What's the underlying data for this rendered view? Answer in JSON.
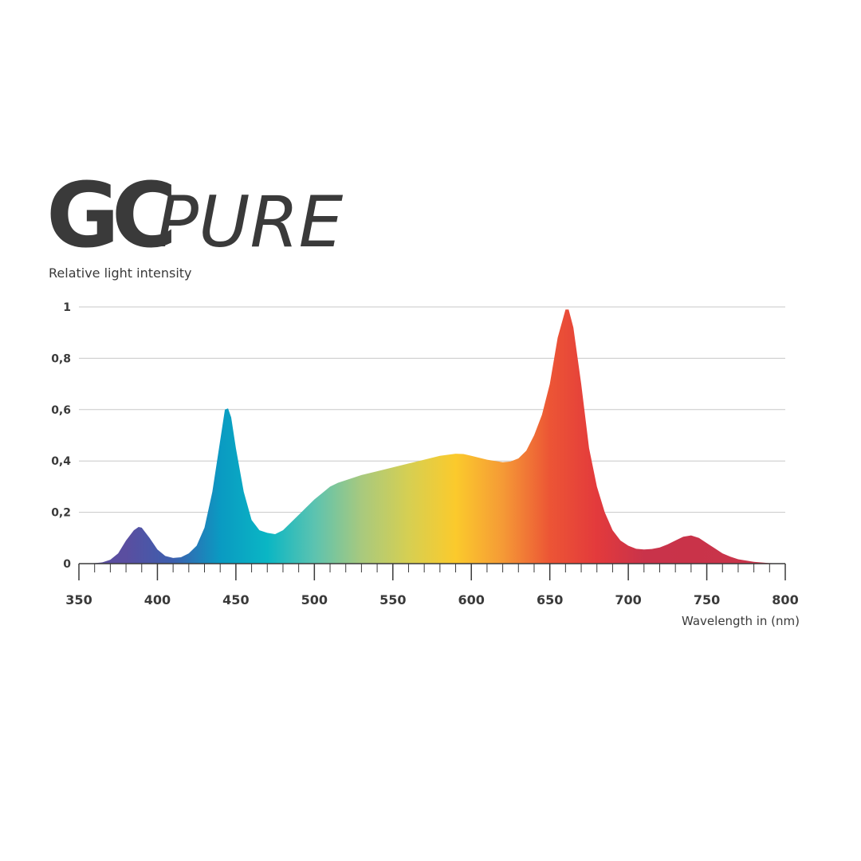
{
  "logo": {
    "mark": "GC",
    "text": "PURE"
  },
  "chart_data": {
    "type": "area",
    "ylabel": "Relative light intensity",
    "xlabel": "Wavelength in (nm)",
    "x": [
      350,
      355,
      360,
      365,
      370,
      375,
      380,
      385,
      388,
      390,
      395,
      400,
      405,
      410,
      415,
      420,
      425,
      430,
      435,
      440,
      443,
      445,
      447,
      450,
      455,
      460,
      465,
      470,
      475,
      480,
      485,
      490,
      495,
      500,
      505,
      510,
      515,
      520,
      525,
      530,
      540,
      550,
      560,
      570,
      580,
      590,
      595,
      600,
      610,
      620,
      625,
      630,
      635,
      640,
      645,
      650,
      655,
      660,
      662,
      665,
      670,
      675,
      680,
      685,
      690,
      695,
      700,
      705,
      710,
      715,
      720,
      725,
      730,
      735,
      740,
      745,
      750,
      755,
      760,
      765,
      770,
      780,
      790,
      800
    ],
    "values": [
      0,
      0,
      0.002,
      0.005,
      0.015,
      0.04,
      0.09,
      0.13,
      0.143,
      0.14,
      0.1,
      0.055,
      0.03,
      0.022,
      0.025,
      0.04,
      0.07,
      0.14,
      0.28,
      0.48,
      0.6,
      0.605,
      0.57,
      0.45,
      0.28,
      0.17,
      0.13,
      0.12,
      0.115,
      0.13,
      0.16,
      0.19,
      0.22,
      0.25,
      0.275,
      0.3,
      0.315,
      0.325,
      0.335,
      0.345,
      0.36,
      0.375,
      0.39,
      0.405,
      0.42,
      0.428,
      0.427,
      0.42,
      0.405,
      0.395,
      0.398,
      0.41,
      0.44,
      0.5,
      0.58,
      0.7,
      0.88,
      0.99,
      0.99,
      0.92,
      0.7,
      0.45,
      0.3,
      0.2,
      0.13,
      0.09,
      0.07,
      0.058,
      0.055,
      0.057,
      0.063,
      0.075,
      0.09,
      0.105,
      0.11,
      0.1,
      0.08,
      0.06,
      0.04,
      0.027,
      0.017,
      0.007,
      0.002,
      0
    ],
    "colors": [
      "#5a4e9e",
      "#5a4ea0",
      "#3c5fae",
      "#0a9ac2",
      "#0ab6c4",
      "#5cc3b0",
      "#a8c97e",
      "#d6cf52",
      "#fbca2c",
      "#f59a36",
      "#ec5535",
      "#e33a3c",
      "#c9334a",
      "#c93349",
      "#c9344a",
      "#c9344a"
    ],
    "xlim": [
      350,
      800
    ],
    "ylim": [
      0,
      1
    ],
    "xticks": [
      350,
      400,
      450,
      500,
      550,
      600,
      650,
      700,
      750,
      800
    ],
    "xminorticks": [
      360,
      370,
      380,
      390,
      410,
      420,
      430,
      440,
      460,
      470,
      480,
      490,
      510,
      520,
      530,
      540,
      560,
      570,
      580,
      590,
      610,
      620,
      630,
      640,
      660,
      670,
      680,
      690,
      710,
      720,
      730,
      740,
      760,
      770,
      780,
      790
    ],
    "yticks": [
      0,
      {
        "value": 0.2,
        "label": "0,2"
      },
      {
        "value": 0.4,
        "label": "0,4"
      },
      {
        "value": 0.6,
        "label": "0,6"
      },
      {
        "value": 0.8,
        "label": "0,8"
      },
      1
    ],
    "grid": true
  }
}
